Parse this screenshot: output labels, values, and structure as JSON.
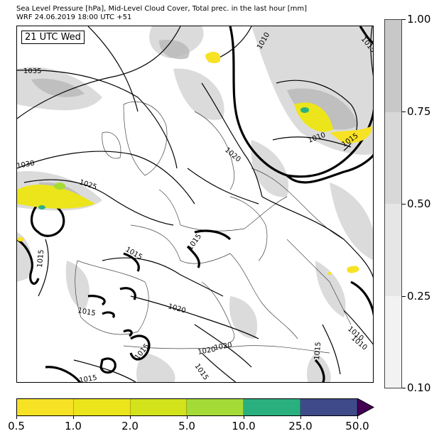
{
  "header": {
    "line1": "Sea Level Pressure [hPa], Mid-Level Cloud Cover, Total prec. in the last hour [mm]",
    "line2": "WRF 24.06.2019 18:00 UTC +51"
  },
  "map": {
    "time_label": "21 UTC Wed",
    "isobar_labels": [
      "1035",
      "1030",
      "1025",
      "1020",
      "1015",
      "1010",
      "1010",
      "1015",
      "1015",
      "1015",
      "1015",
      "1020",
      "1020",
      "1015",
      "1015",
      "1015",
      "1010",
      "1015",
      "1015",
      "1020",
      "1010"
    ]
  },
  "cloud_colorbar": {
    "labels": [
      "1.00",
      "0.75",
      "0.50",
      "0.25",
      "0.10"
    ],
    "colors": [
      "#c8c8c8",
      "#d8d8d8",
      "#e6e6e6",
      "#f2f2f2"
    ]
  },
  "precip_colorbar": {
    "labels": [
      "0.5",
      "1.0",
      "2.0",
      "5.0",
      "10.0",
      "25.0",
      "50.0"
    ],
    "colors": [
      "#f7e225",
      "#ece51b",
      "#d2e21b",
      "#a5db36",
      "#2ab07f",
      "#3e4a89",
      "#440154"
    ]
  }
}
